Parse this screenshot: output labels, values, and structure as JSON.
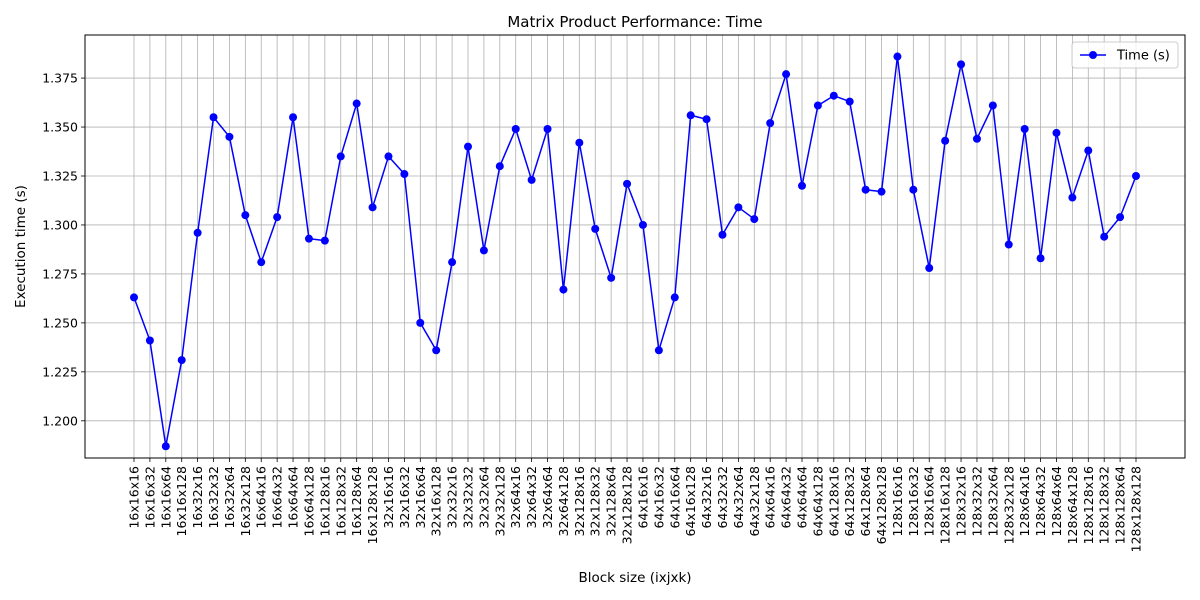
{
  "chart_data": {
    "type": "line",
    "title": "Matrix Product Performance: Time",
    "xlabel": "Block size (ixjxk)",
    "ylabel": "Execution time (s)",
    "ylim": [
      1.181,
      1.397
    ],
    "yticks": [
      "1.200",
      "1.225",
      "1.250",
      "1.275",
      "1.300",
      "1.325",
      "1.350",
      "1.375"
    ],
    "grid": true,
    "legend_position": "top-right",
    "categories": [
      "16x16x16",
      "16x16x32",
      "16x16x64",
      "16x16x128",
      "16x32x16",
      "16x32x32",
      "16x32x64",
      "16x32x128",
      "16x64x16",
      "16x64x32",
      "16x64x64",
      "16x64x128",
      "16x128x16",
      "16x128x32",
      "16x128x64",
      "16x128x128",
      "32x16x16",
      "32x16x32",
      "32x16x64",
      "32x16x128",
      "32x32x16",
      "32x32x32",
      "32x32x64",
      "32x32x128",
      "32x64x16",
      "32x64x32",
      "32x64x64",
      "32x64x128",
      "32x128x16",
      "32x128x32",
      "32x128x64",
      "32x128x128",
      "64x16x16",
      "64x16x32",
      "64x16x64",
      "64x16x128",
      "64x32x16",
      "64x32x32",
      "64x32x64",
      "64x32x128",
      "64x64x16",
      "64x64x32",
      "64x64x64",
      "64x64x128",
      "64x128x16",
      "64x128x32",
      "64x128x64",
      "64x128x128",
      "128x16x16",
      "128x16x32",
      "128x16x64",
      "128x16x128",
      "128x32x16",
      "128x32x32",
      "128x32x64",
      "128x32x128",
      "128x64x16",
      "128x64x32",
      "128x64x64",
      "128x64x128",
      "128x128x16",
      "128x128x32",
      "128x128x64",
      "128x128x128"
    ],
    "series": [
      {
        "name": "Time (s)",
        "color": "#0000ff",
        "marker": "circle",
        "values": [
          1.263,
          1.241,
          1.187,
          1.231,
          1.296,
          1.355,
          1.345,
          1.305,
          1.281,
          1.304,
          1.355,
          1.293,
          1.292,
          1.335,
          1.362,
          1.309,
          1.335,
          1.326,
          1.25,
          1.236,
          1.281,
          1.34,
          1.287,
          1.33,
          1.349,
          1.323,
          1.349,
          1.267,
          1.342,
          1.298,
          1.273,
          1.321,
          1.3,
          1.236,
          1.263,
          1.356,
          1.354,
          1.295,
          1.309,
          1.303,
          1.352,
          1.377,
          1.32,
          1.361,
          1.366,
          1.363,
          1.318,
          1.317,
          1.386,
          1.318,
          1.278,
          1.343,
          1.382,
          1.344,
          1.361,
          1.29,
          1.349,
          1.283,
          1.347,
          1.314,
          1.338,
          1.294,
          1.304,
          1.325
        ]
      }
    ]
  }
}
